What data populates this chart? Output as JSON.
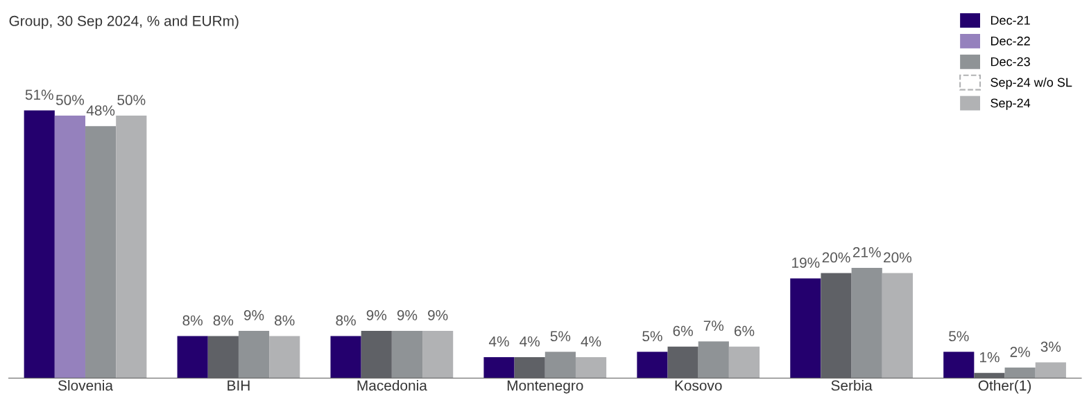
{
  "chart_data": {
    "type": "bar",
    "title": "Group, 30 Sep 2024, % and EURm)",
    "categories": [
      "Slovenia",
      "BIH",
      "Macedonia",
      "Montenegro",
      "Kosovo",
      "Serbia",
      "Other(1)"
    ],
    "series": [
      {
        "name": "Dec-21",
        "color": "#24006e",
        "values": [
          51,
          8,
          8,
          4,
          5,
          19,
          5
        ],
        "value_labels": [
          "51%",
          "8%",
          "8%",
          "4%",
          "5%",
          "19%",
          "5%"
        ]
      },
      {
        "name": "Dec-22",
        "color": "#9581bd",
        "colors": [
          "#9581bd",
          "#5f6166",
          "#5f6166",
          "#5f6166",
          "#5f6166",
          "#5f6166",
          "#5f6166"
        ],
        "values": [
          50,
          8,
          9,
          4,
          6,
          20,
          1
        ],
        "value_labels": [
          "50%",
          "8%",
          "9%",
          "4%",
          "6%",
          "20%",
          "1%"
        ]
      },
      {
        "name": "Dec-23",
        "color": "#8f9396",
        "values": [
          48,
          9,
          9,
          5,
          7,
          21,
          2
        ],
        "value_labels": [
          "48%",
          "9%",
          "9%",
          "5%",
          "7%",
          "21%",
          "2%"
        ]
      },
      {
        "name": "Sep-24 w/o SL",
        "color": "#b1b2b4",
        "line_style": "dashed",
        "values": [
          null,
          null,
          null,
          null,
          null,
          null,
          null
        ]
      },
      {
        "name": "Sep-24",
        "color": "#b1b2b4",
        "values": [
          50,
          8,
          9,
          4,
          6,
          20,
          3
        ],
        "value_labels": [
          "50%",
          "8%",
          "9%",
          "4%",
          "6%",
          "20%",
          "3%"
        ]
      }
    ],
    "legend": "top right",
    "grid": false
  }
}
